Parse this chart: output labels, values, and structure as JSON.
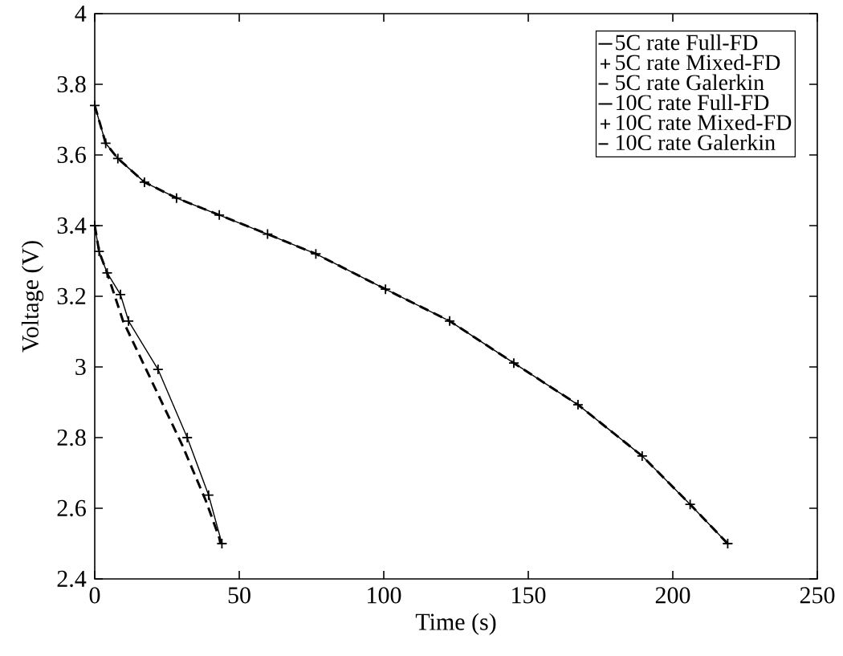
{
  "chart_data": {
    "type": "line",
    "xlabel": "Time (s)",
    "ylabel": "Voltage (V)",
    "xlim": [
      0,
      250
    ],
    "ylim": [
      2.4,
      4
    ],
    "xticks": [
      0,
      50,
      100,
      150,
      200,
      250
    ],
    "yticks": [
      2.4,
      2.6,
      2.8,
      3,
      3.2,
      3.4,
      3.6,
      3.8,
      4
    ],
    "legend": "top right",
    "grid": false,
    "series": [
      {
        "name": "5C rate Full-FD",
        "color": "#000000",
        "line_style": "solid",
        "marker": "none",
        "x": [
          0,
          3.8,
          8,
          17.2,
          28.3,
          43.1,
          59.8,
          76.5,
          100.6,
          122.8,
          145,
          167.2,
          189.4,
          206,
          219
        ],
        "values": [
          3.74,
          3.633,
          3.59,
          3.523,
          3.478,
          3.43,
          3.376,
          3.32,
          3.22,
          3.13,
          3.011,
          2.893,
          2.748,
          2.611,
          2.5
        ]
      },
      {
        "name": "5C rate Mixed-FD",
        "type": "scatter",
        "color": "#000000",
        "marker": "cross",
        "x": [
          0,
          3.8,
          8,
          17.2,
          28.3,
          43.1,
          59.8,
          76.5,
          100.6,
          122.8,
          145,
          167.2,
          189.4,
          206,
          219
        ],
        "values": [
          3.74,
          3.633,
          3.59,
          3.523,
          3.478,
          3.43,
          3.376,
          3.32,
          3.22,
          3.13,
          3.011,
          2.893,
          2.748,
          2.611,
          2.5
        ]
      },
      {
        "name": "5C rate Galerkin",
        "color": "#000000",
        "line_style": "dashed",
        "marker": "none",
        "x": [
          0,
          3.8,
          8,
          17.2,
          28.3,
          43.1,
          59.8,
          76.5,
          100.6,
          122.8,
          145,
          167.2,
          189.4,
          206,
          219
        ],
        "values": [
          3.74,
          3.633,
          3.59,
          3.523,
          3.478,
          3.43,
          3.376,
          3.32,
          3.22,
          3.13,
          3.011,
          2.893,
          2.748,
          2.611,
          2.5
        ]
      },
      {
        "name": "10C rate Full-FD",
        "color": "#000000",
        "line_style": "solid",
        "marker": "none",
        "x": [
          0,
          1.5,
          4.3,
          8.9,
          11.7,
          21.9,
          32,
          39.4,
          44
        ],
        "values": [
          3.4,
          3.327,
          3.266,
          3.205,
          3.13,
          2.993,
          2.8,
          2.637,
          2.5
        ]
      },
      {
        "name": "10C rate Mixed-FD",
        "type": "scatter",
        "color": "#000000",
        "marker": "cross",
        "x": [
          0,
          1.5,
          4.3,
          8.9,
          11.7,
          21.9,
          32,
          39.4,
          44
        ],
        "values": [
          3.4,
          3.327,
          3.266,
          3.205,
          3.13,
          2.993,
          2.8,
          2.637,
          2.5
        ]
      },
      {
        "name": "10C rate Galerkin",
        "color": "#000000",
        "line_style": "dashed",
        "marker": "none",
        "x": [
          0,
          1.5,
          4.3,
          9.8,
          20,
          30.2,
          38.5,
          43.1,
          43.5
        ],
        "values": [
          3.4,
          3.327,
          3.266,
          3.13,
          2.955,
          2.78,
          2.62,
          2.516,
          2.5
        ]
      }
    ]
  }
}
